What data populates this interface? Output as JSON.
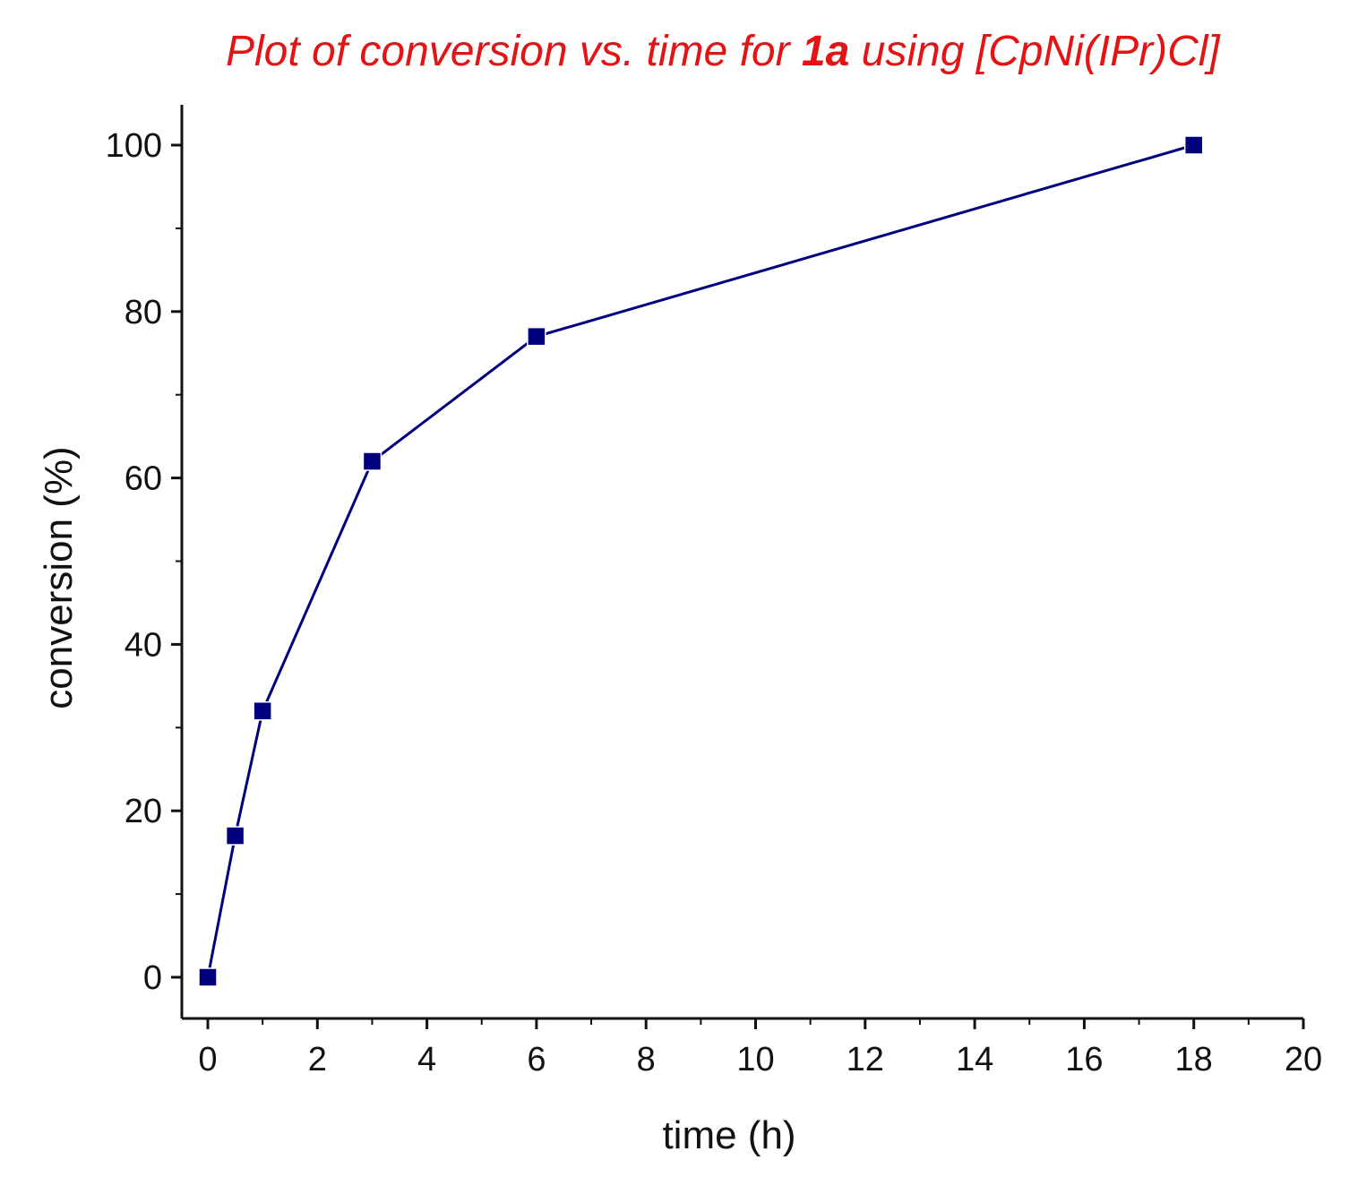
{
  "chart_data": {
    "type": "line",
    "title": {
      "prefix": "Plot of conversion vs. time for ",
      "bold": "1a",
      "suffix": " using [CpNi(IPr)Cl]"
    },
    "xlabel": "time (h)",
    "ylabel": "conversion (%)",
    "xlim": [
      -0.5,
      20
    ],
    "ylim": [
      -5,
      105
    ],
    "xticks": [
      0,
      2,
      4,
      6,
      8,
      10,
      12,
      14,
      16,
      18,
      20
    ],
    "yticks": [
      0,
      20,
      40,
      60,
      80,
      100
    ],
    "grid": false,
    "series": [
      {
        "name": "conversion",
        "color": "#00007f",
        "marker": "square",
        "x": [
          0,
          0.5,
          1,
          3,
          6,
          18
        ],
        "y": [
          0,
          17,
          32,
          62,
          77,
          100
        ]
      }
    ]
  }
}
